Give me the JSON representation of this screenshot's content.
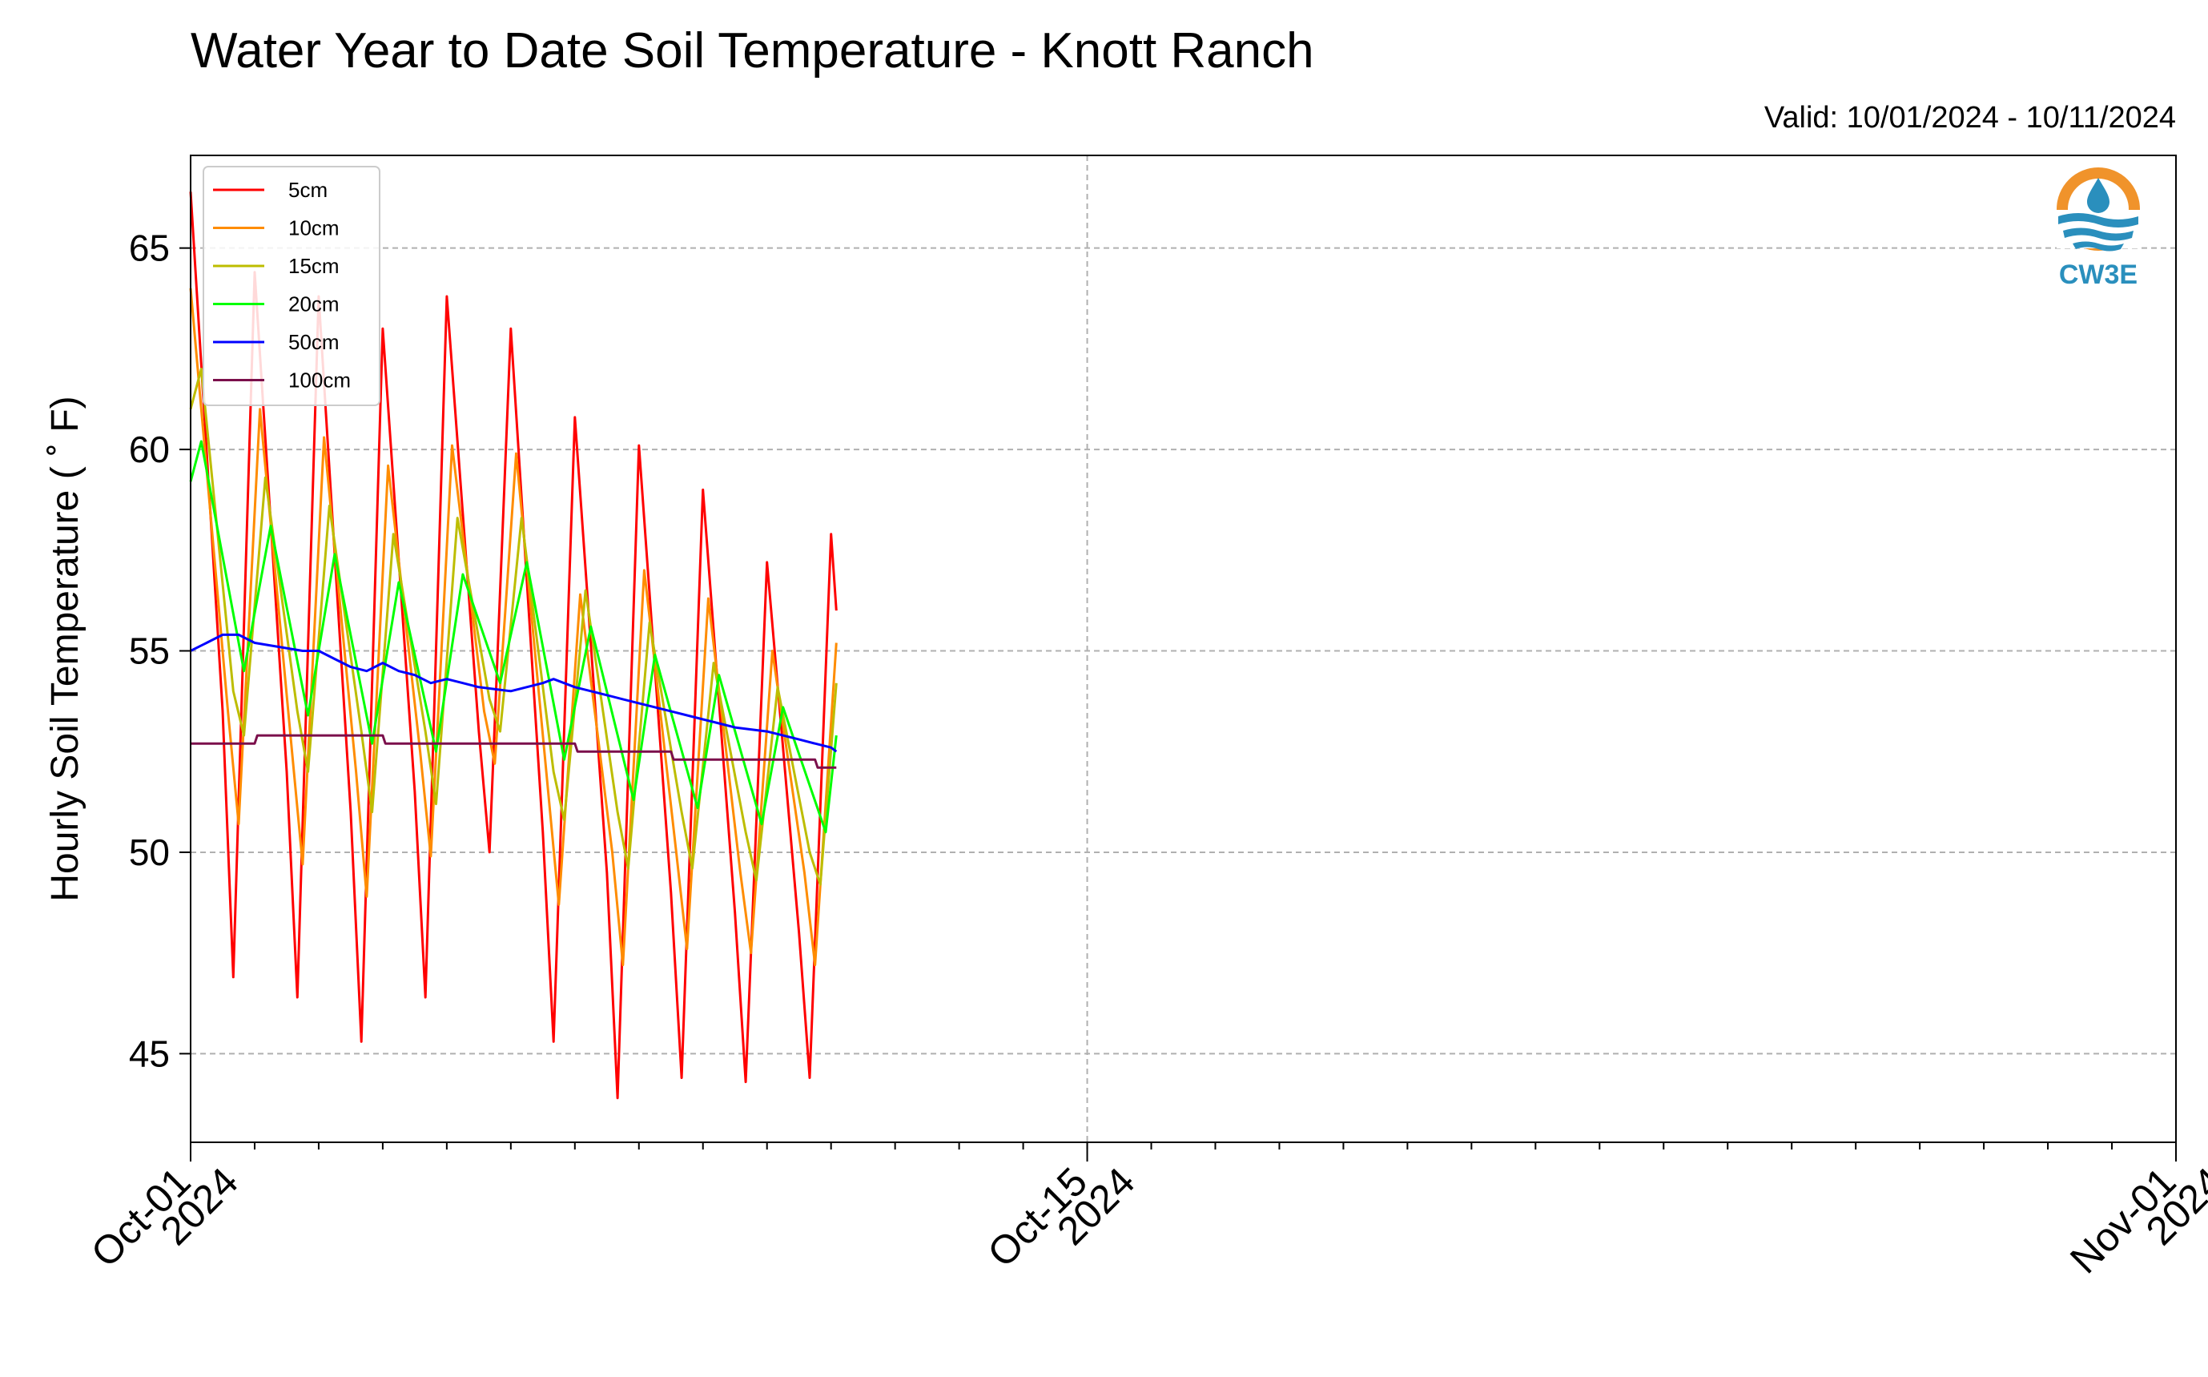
{
  "title": "Water Year to Date Soil Temperature - Knott Ranch",
  "valid_text": "Valid: 10/01/2024 - 10/11/2024",
  "logo": {
    "text": "CW3E",
    "icon": "cw3e-water-drop-logo",
    "colors": [
      "#f0932b",
      "#2a8fbd"
    ]
  },
  "chart_data": {
    "type": "line",
    "title": "Water Year to Date Soil Temperature - Knott Ranch",
    "ylabel": "Hourly Soil Temperature ( ˚ F)",
    "xlabel": "",
    "xlim": [
      "2024-10-01",
      "2024-11-01"
    ],
    "ylim": [
      42.8,
      67.3
    ],
    "yticks": [
      45,
      50,
      55,
      60,
      65
    ],
    "xticks": [
      {
        "date": "2024-10-01",
        "label": [
          "Oct-01",
          "2024"
        ]
      },
      {
        "date": "2024-10-15",
        "label": [
          "Oct-15",
          "2024"
        ]
      },
      {
        "date": "2024-11-01",
        "label": [
          "Nov-01",
          "2024"
        ]
      }
    ],
    "grid": true,
    "legend": "top-left",
    "series": [
      {
        "name": "5cm",
        "color": "#ff0000",
        "x": [
          "2024-10-01 00:00",
          "2024-10-01 12:00",
          "2024-10-01 16:00",
          "2024-10-02 00:00",
          "2024-10-02 12:00",
          "2024-10-02 16:00",
          "2024-10-03 00:00",
          "2024-10-03 12:00",
          "2024-10-03 16:00",
          "2024-10-04 00:00",
          "2024-10-04 12:00",
          "2024-10-04 16:00",
          "2024-10-05 00:00",
          "2024-10-05 12:00",
          "2024-10-05 16:00",
          "2024-10-06 00:00",
          "2024-10-06 12:00",
          "2024-10-06 16:00",
          "2024-10-07 00:00",
          "2024-10-07 12:00",
          "2024-10-07 16:00",
          "2024-10-08 00:00",
          "2024-10-08 12:00",
          "2024-10-08 16:00",
          "2024-10-09 00:00",
          "2024-10-09 12:00",
          "2024-10-09 16:00",
          "2024-10-10 00:00",
          "2024-10-10 12:00",
          "2024-10-10 16:00",
          "2024-10-11 00:00",
          "2024-10-11 02:00"
        ],
        "y": [
          66.4,
          53.5,
          46.9,
          64.4,
          52.0,
          46.4,
          63.8,
          51.0,
          45.3,
          63.0,
          51.5,
          46.4,
          63.8,
          53.0,
          50.0,
          63.0,
          50.5,
          45.3,
          60.8,
          49.5,
          43.9,
          60.1,
          49.0,
          44.4,
          59.0,
          48.5,
          44.3,
          57.2,
          48.0,
          44.4,
          57.9,
          56.0
        ]
      },
      {
        "name": "10cm",
        "color": "#ff8c00",
        "x": [
          "2024-10-01 00:00",
          "2024-10-01 14:00",
          "2024-10-01 18:00",
          "2024-10-02 02:00",
          "2024-10-02 14:00",
          "2024-10-02 18:00",
          "2024-10-03 02:00",
          "2024-10-03 14:00",
          "2024-10-03 18:00",
          "2024-10-04 02:00",
          "2024-10-04 14:00",
          "2024-10-04 18:00",
          "2024-10-05 02:00",
          "2024-10-05 14:00",
          "2024-10-05 18:00",
          "2024-10-06 02:00",
          "2024-10-06 14:00",
          "2024-10-06 18:00",
          "2024-10-07 02:00",
          "2024-10-07 14:00",
          "2024-10-07 18:00",
          "2024-10-08 02:00",
          "2024-10-08 14:00",
          "2024-10-08 18:00",
          "2024-10-09 02:00",
          "2024-10-09 14:00",
          "2024-10-09 18:00",
          "2024-10-10 02:00",
          "2024-10-10 14:00",
          "2024-10-10 18:00",
          "2024-10-11 02:00"
        ],
        "y": [
          64.0,
          53.5,
          50.7,
          61.0,
          52.5,
          49.7,
          60.3,
          52.0,
          48.9,
          59.6,
          52.5,
          49.9,
          60.1,
          53.5,
          52.2,
          59.9,
          51.5,
          48.7,
          56.4,
          50.0,
          47.2,
          57.0,
          50.0,
          47.6,
          56.3,
          49.5,
          47.5,
          55.0,
          49.5,
          47.2,
          55.2
        ]
      },
      {
        "name": "15cm",
        "color": "#bdbd00",
        "x": [
          "2024-10-01 00:00",
          "2024-10-01 04:00",
          "2024-10-01 16:00",
          "2024-10-01 20:00",
          "2024-10-02 04:00",
          "2024-10-02 16:00",
          "2024-10-02 20:00",
          "2024-10-03 04:00",
          "2024-10-03 16:00",
          "2024-10-03 20:00",
          "2024-10-04 04:00",
          "2024-10-04 16:00",
          "2024-10-04 20:00",
          "2024-10-05 04:00",
          "2024-10-05 16:00",
          "2024-10-05 20:00",
          "2024-10-06 04:00",
          "2024-10-06 16:00",
          "2024-10-06 20:00",
          "2024-10-07 04:00",
          "2024-10-07 16:00",
          "2024-10-07 20:00",
          "2024-10-08 04:00",
          "2024-10-08 16:00",
          "2024-10-08 20:00",
          "2024-10-09 04:00",
          "2024-10-09 16:00",
          "2024-10-09 20:00",
          "2024-10-10 04:00",
          "2024-10-10 16:00",
          "2024-10-10 20:00",
          "2024-10-11 02:00"
        ],
        "y": [
          61.0,
          62.0,
          54.0,
          52.9,
          59.3,
          53.5,
          52.0,
          58.6,
          53.0,
          51.0,
          57.9,
          53.0,
          51.2,
          58.3,
          53.8,
          53.0,
          58.3,
          52.0,
          50.8,
          56.5,
          51.0,
          49.6,
          55.7,
          51.0,
          49.6,
          54.7,
          50.5,
          49.3,
          54.1,
          50.0,
          49.2,
          54.2
        ]
      },
      {
        "name": "20cm",
        "color": "#00ff00",
        "x": [
          "2024-10-01 00:00",
          "2024-10-01 04:00",
          "2024-10-01 20:00",
          "2024-10-02 06:00",
          "2024-10-02 20:00",
          "2024-10-03 06:00",
          "2024-10-03 20:00",
          "2024-10-04 06:00",
          "2024-10-04 20:00",
          "2024-10-05 06:00",
          "2024-10-05 20:00",
          "2024-10-06 06:00",
          "2024-10-06 20:00",
          "2024-10-07 06:00",
          "2024-10-07 22:00",
          "2024-10-08 06:00",
          "2024-10-08 22:00",
          "2024-10-09 06:00",
          "2024-10-09 22:00",
          "2024-10-10 06:00",
          "2024-10-10 22:00",
          "2024-10-11 02:00"
        ],
        "y": [
          59.2,
          60.2,
          54.5,
          58.1,
          53.4,
          57.4,
          52.7,
          56.7,
          52.5,
          56.9,
          54.2,
          57.2,
          52.3,
          55.6,
          51.3,
          54.9,
          51.1,
          54.4,
          50.7,
          53.6,
          50.5,
          52.9
        ]
      },
      {
        "name": "50cm",
        "color": "#0000ff",
        "x": [
          "2024-10-01 00:00",
          "2024-10-01 06:00",
          "2024-10-01 12:00",
          "2024-10-01 18:00",
          "2024-10-02 00:00",
          "2024-10-02 18:00",
          "2024-10-03 00:00",
          "2024-10-03 06:00",
          "2024-10-03 12:00",
          "2024-10-03 18:00",
          "2024-10-04 00:00",
          "2024-10-04 06:00",
          "2024-10-04 12:00",
          "2024-10-04 18:00",
          "2024-10-05 00:00",
          "2024-10-05 06:00",
          "2024-10-05 12:00",
          "2024-10-06 00:00",
          "2024-10-06 12:00",
          "2024-10-06 16:00",
          "2024-10-07 00:00",
          "2024-10-07 06:00",
          "2024-10-07 12:00",
          "2024-10-07 18:00",
          "2024-10-08 00:00",
          "2024-10-08 12:00",
          "2024-10-09 00:00",
          "2024-10-09 06:00",
          "2024-10-09 12:00",
          "2024-10-10 00:00",
          "2024-10-10 06:00",
          "2024-10-10 12:00",
          "2024-10-10 18:00",
          "2024-10-11 00:00",
          "2024-10-11 02:00"
        ],
        "y": [
          55.0,
          55.2,
          55.4,
          55.4,
          55.2,
          55.0,
          55.0,
          54.8,
          54.6,
          54.5,
          54.7,
          54.5,
          54.4,
          54.2,
          54.3,
          54.2,
          54.1,
          54.0,
          54.2,
          54.3,
          54.1,
          54.0,
          53.9,
          53.8,
          53.7,
          53.5,
          53.3,
          53.2,
          53.1,
          53.0,
          52.9,
          52.8,
          52.7,
          52.6,
          52.5
        ]
      },
      {
        "name": "100cm",
        "color": "#7b0f4b",
        "x": [
          "2024-10-01 00:00",
          "2024-10-02 00:00",
          "2024-10-02 01:00",
          "2024-10-04 00:00",
          "2024-10-04 01:00",
          "2024-10-07 00:00",
          "2024-10-07 01:00",
          "2024-10-08 12:00",
          "2024-10-08 13:00",
          "2024-10-10 18:00",
          "2024-10-10 19:00",
          "2024-10-11 02:00"
        ],
        "y": [
          52.7,
          52.7,
          52.9,
          52.9,
          52.7,
          52.7,
          52.5,
          52.5,
          52.3,
          52.3,
          52.1,
          52.1
        ]
      }
    ]
  }
}
